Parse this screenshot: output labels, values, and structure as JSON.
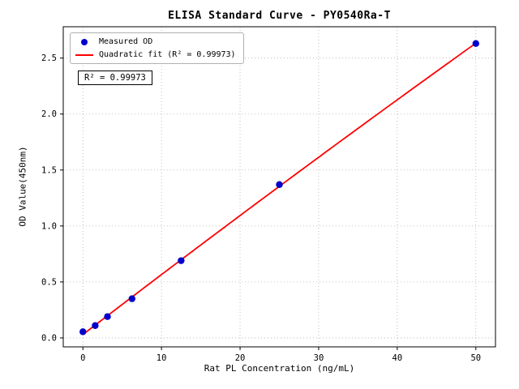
{
  "figure": {
    "background": "#ffffff",
    "frame_color": "#000000",
    "grid_color": "#b0b0b0"
  },
  "chart_data": {
    "type": "scatter",
    "title": "ELISA Standard Curve - PY0540Ra-T",
    "xlabel": "Rat PL Concentration (ng/mL)",
    "ylabel": "OD Value(450nm)",
    "xlim": [
      -2.5,
      52.5
    ],
    "ylim": [
      -0.08,
      2.78
    ],
    "x_ticks": [
      0,
      10,
      20,
      30,
      40,
      50
    ],
    "y_ticks": [
      0.0,
      0.5,
      1.0,
      1.5,
      2.0,
      2.5
    ],
    "grid": "dotted",
    "legend_position": "upper-left",
    "series": [
      {
        "name": "Measured OD",
        "type": "scatter",
        "marker": "circle",
        "color": "#0000cd",
        "x": [
          0,
          1.5625,
          3.125,
          6.25,
          12.5,
          25,
          50
        ],
        "y": [
          0.055,
          0.11,
          0.19,
          0.35,
          0.69,
          1.37,
          2.63
        ]
      },
      {
        "name": "Quadratic fit (R² = 0.99973)",
        "type": "line",
        "fit": "quadratic",
        "color": "#ff0000",
        "r_squared": 0.99973
      }
    ],
    "annotation": "R² = 0.99973"
  }
}
